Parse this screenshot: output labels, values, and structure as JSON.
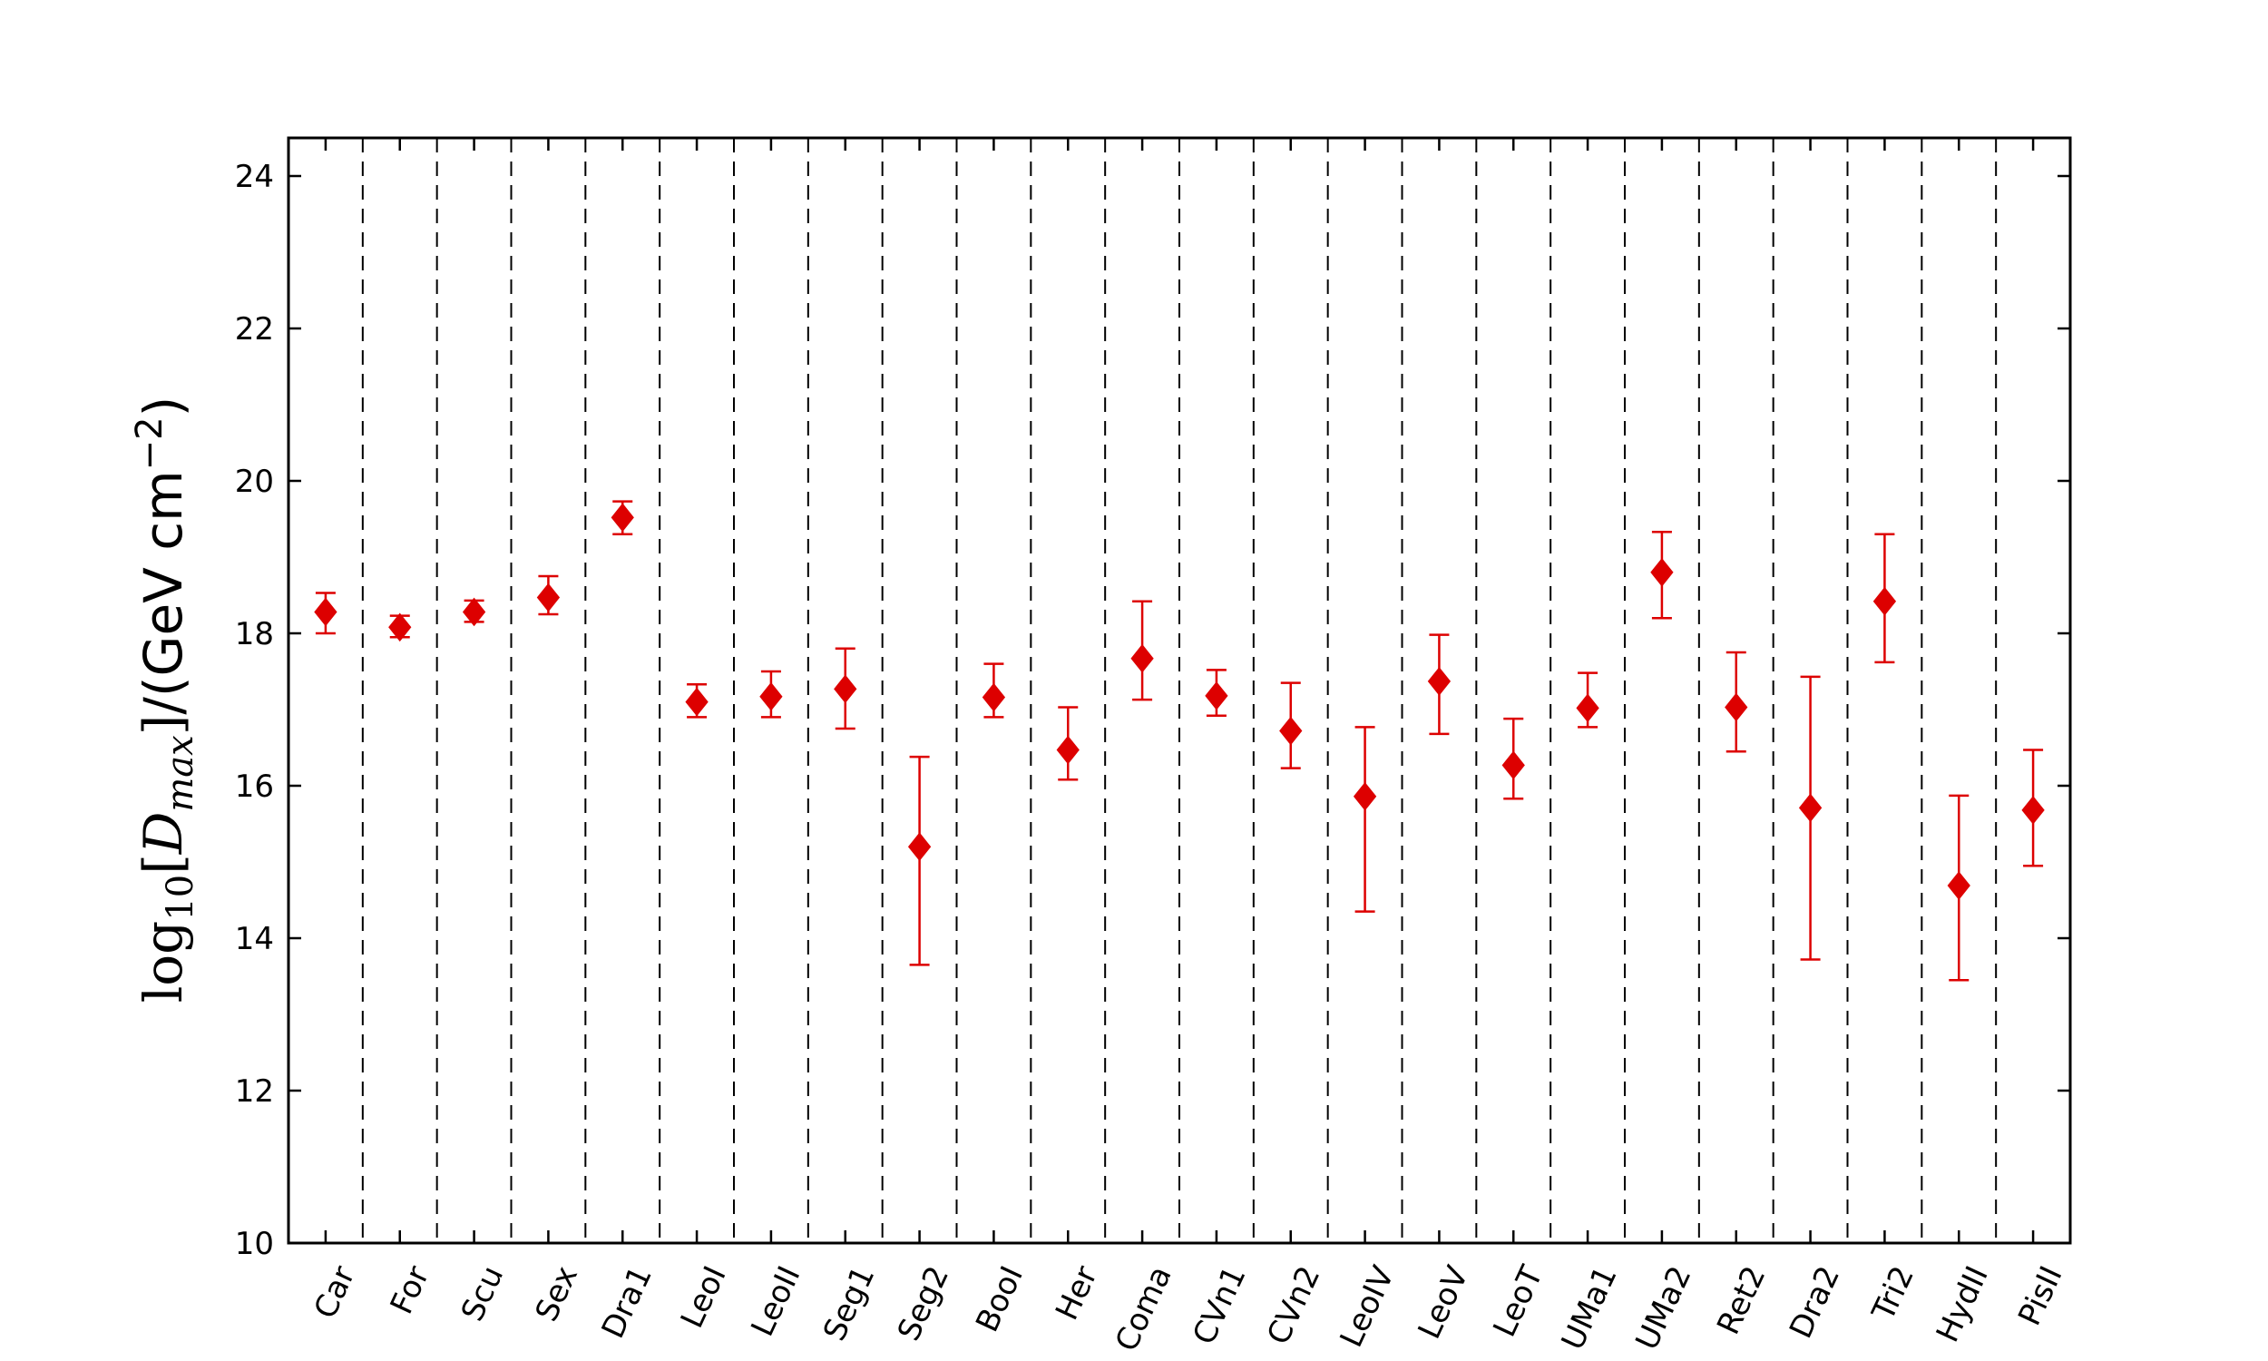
{
  "chart_data": {
    "type": "scatter",
    "title": "",
    "xlabel": "",
    "ylabel": {
      "log": "log",
      "log_sub": "10",
      "open_bracket": "[",
      "D": "D",
      "D_sub": "max",
      "close_bracket": "]",
      "units": "/(GeV cm",
      "units_sup": "−2",
      "units_close": ")"
    },
    "ylim": [
      10,
      24.5
    ],
    "yticks": [
      10,
      12,
      14,
      16,
      18,
      20,
      22,
      24
    ],
    "ytick_labels": [
      "10",
      "12",
      "14",
      "16",
      "18",
      "20",
      "22",
      "24"
    ],
    "grid": false,
    "category_separators": "dashed",
    "marker": "diamond",
    "color": "#dd0000",
    "categories": [
      "Car",
      "For",
      "Scu",
      "Sex",
      "Dra1",
      "LeoI",
      "LeoII",
      "Seg1",
      "Seg2",
      "BooI",
      "Her",
      "Coma",
      "CVn1",
      "CVn2",
      "LeoIV",
      "LeoV",
      "LeoT",
      "UMa1",
      "UMa2",
      "Ret2",
      "Dra2",
      "Tri2",
      "HydII",
      "PisII"
    ],
    "values": [
      18.28,
      18.08,
      18.28,
      18.47,
      19.52,
      17.1,
      17.17,
      17.27,
      15.2,
      17.16,
      16.47,
      17.67,
      17.18,
      16.72,
      15.86,
      17.37,
      16.27,
      17.02,
      18.8,
      17.03,
      15.71,
      18.42,
      14.69,
      15.68
    ],
    "err_low": [
      18.0,
      17.95,
      18.15,
      18.25,
      19.3,
      16.9,
      16.9,
      16.75,
      13.65,
      16.9,
      16.08,
      17.13,
      16.92,
      16.23,
      14.35,
      16.68,
      15.83,
      16.77,
      18.2,
      16.45,
      13.72,
      17.62,
      13.45,
      14.95
    ],
    "err_high": [
      18.53,
      18.23,
      18.43,
      18.75,
      19.73,
      17.33,
      17.5,
      17.8,
      16.38,
      17.6,
      17.03,
      18.42,
      17.52,
      17.35,
      16.77,
      17.98,
      16.88,
      17.48,
      19.33,
      17.75,
      17.43,
      19.3,
      15.87,
      16.47
    ]
  }
}
